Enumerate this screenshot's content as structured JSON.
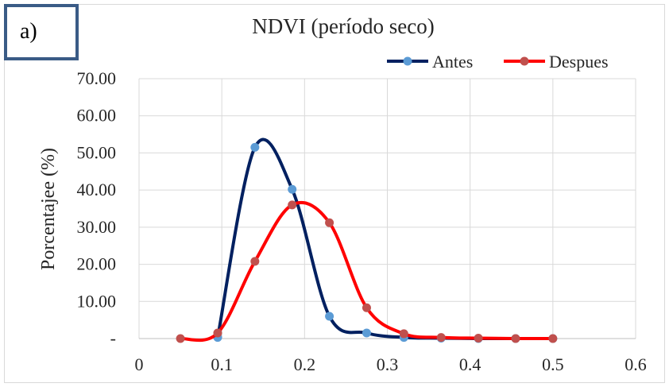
{
  "panel_label": "a)",
  "chart_data": {
    "type": "line",
    "title": "NDVI (período seco)",
    "xlabel": "",
    "ylabel": "Porcentajee (%)",
    "xlim": [
      0,
      0.6
    ],
    "ylim": [
      0,
      70
    ],
    "x_ticks": [
      "0",
      "0.1",
      "0.2",
      "0.3",
      "0.4",
      "0.5",
      "0.6"
    ],
    "y_ticks": [
      "-",
      "10.00",
      "20.00",
      "30.00",
      "40.00",
      "50.00",
      "60.00",
      "70.00"
    ],
    "grid": true,
    "legend_position": "top-right",
    "smooth": true,
    "series": [
      {
        "name": "Antes",
        "color": "#002060",
        "marker_color": "#5b9bd5",
        "x": [
          0.095,
          0.14,
          0.185,
          0.23,
          0.275,
          0.32,
          0.365,
          0.41,
          0.455,
          0.5
        ],
        "y": [
          0.3,
          51.5,
          40.2,
          6.0,
          1.5,
          0.3,
          0.1,
          0.0,
          0.0,
          0.0
        ]
      },
      {
        "name": "Despues",
        "color": "#ff0000",
        "marker_color": "#c0504d",
        "x": [
          0.05,
          0.095,
          0.14,
          0.185,
          0.23,
          0.275,
          0.32,
          0.365,
          0.41,
          0.455,
          0.5
        ],
        "y": [
          0.0,
          1.5,
          20.8,
          36.0,
          31.2,
          8.3,
          1.3,
          0.3,
          0.1,
          0.0,
          0.0
        ]
      }
    ]
  }
}
